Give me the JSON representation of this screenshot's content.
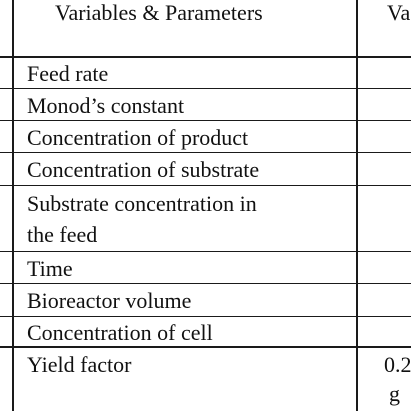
{
  "table": {
    "header": {
      "col1": "Variables & Parameters",
      "col2": "Va"
    },
    "rows": [
      {
        "label": "Feed rate"
      },
      {
        "label": "Monod’s constant"
      },
      {
        "label": "Concentration of product"
      },
      {
        "label": "Concentration of substrate"
      },
      {
        "label_line1": "Substrate concentration in",
        "label_line2": "the feed"
      },
      {
        "label": "Time"
      },
      {
        "label": "Bioreactor volume"
      },
      {
        "label": "Concentration of cell"
      },
      {
        "label": "Yield factor",
        "value_line1": "0.2",
        "value_line2": "g"
      }
    ]
  }
}
